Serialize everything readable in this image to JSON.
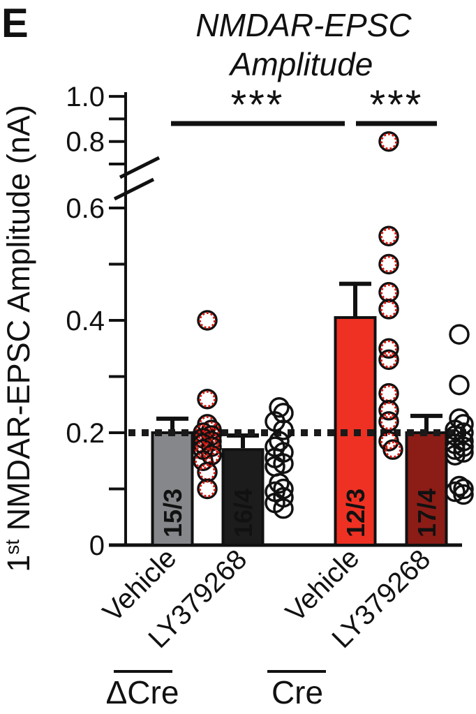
{
  "panel_label": "E",
  "title_line1": "NMDAR-EPSC",
  "title_line2": "Amplitude",
  "y_axis_label": {
    "num": "1",
    "sup": "st",
    "rest": " NMDAR-EPSC Amplitude (nA)"
  },
  "chart_data": {
    "type": "bar",
    "title": "NMDAR-EPSC Amplitude",
    "ylabel": "1st NMDAR-EPSC Amplitude (nA)",
    "ylabel_unit": "nA",
    "ylim": [
      0,
      1.0
    ],
    "y_axis_break": [
      0.65,
      0.7
    ],
    "yticks_labeled": [
      {
        "v": 0,
        "label": "0"
      },
      {
        "v": 0.2,
        "label": "0.2"
      },
      {
        "v": 0.4,
        "label": "0.4"
      },
      {
        "v": 0.6,
        "label": "0.6"
      },
      {
        "v": 0.8,
        "label": "0.8"
      },
      {
        "v": 1.0,
        "label": "1.0"
      }
    ],
    "yticks_minor": [
      0.1,
      0.3,
      0.5,
      0.7,
      0.9
    ],
    "reference_line": 0.2,
    "grid": false,
    "legend": "none",
    "groups": [
      {
        "name": "ΔCre"
      },
      {
        "name": "Cre"
      }
    ],
    "significance": [
      {
        "stars": "***",
        "between": [
          "ΔCre Vehicle",
          "Cre Vehicle"
        ]
      },
      {
        "stars": "***",
        "between": [
          "Cre Vehicle",
          "Cre LY379268"
        ]
      }
    ],
    "bars": [
      {
        "group": "ΔCre",
        "condition": "Vehicle",
        "n_label": "15/3",
        "mean": 0.2,
        "sem": 0.025,
        "fill": "#85878a",
        "point_style": "red-dashed",
        "points": [
          0.4,
          0.26,
          0.215,
          0.205,
          0.2,
          0.195,
          0.19,
          0.185,
          0.18,
          0.175,
          0.17,
          0.16,
          0.15,
          0.13,
          0.1
        ]
      },
      {
        "group": "ΔCre",
        "condition": "LY379268",
        "n_label": "16/4",
        "mean": 0.17,
        "sem": 0.025,
        "fill": "#1c1c1c",
        "point_style": "black",
        "points": [
          0.245,
          0.235,
          0.22,
          0.205,
          0.185,
          0.175,
          0.165,
          0.155,
          0.145,
          0.14,
          0.11,
          0.1,
          0.095,
          0.085,
          0.075,
          0.065
        ]
      },
      {
        "group": "Cre",
        "condition": "Vehicle",
        "n_label": "12/3",
        "mean": 0.405,
        "sem": 0.06,
        "fill": "#ee3123",
        "point_style": "red-dashed",
        "points": [
          0.8,
          0.55,
          0.5,
          0.45,
          0.42,
          0.35,
          0.33,
          0.27,
          0.24,
          0.22,
          0.185,
          0.17
        ]
      },
      {
        "group": "Cre",
        "condition": "LY379268",
        "n_label": "17/4",
        "mean": 0.2,
        "sem": 0.03,
        "fill": "#8c1c16",
        "point_style": "black",
        "points": [
          0.375,
          0.285,
          0.225,
          0.215,
          0.205,
          0.2,
          0.195,
          0.185,
          0.18,
          0.175,
          0.17,
          0.165,
          0.16,
          0.105,
          0.1,
          0.095,
          0.09
        ]
      }
    ],
    "colors": {
      "bar_outline": "#111111",
      "point_black": "#111111",
      "point_red_accent": "#d6180f",
      "dashed_line": "#1a1a1a",
      "bar_gray": "#85878a",
      "bar_black": "#1c1c1c",
      "bar_red": "#ee3123",
      "bar_dark_red": "#8c1c16"
    }
  }
}
